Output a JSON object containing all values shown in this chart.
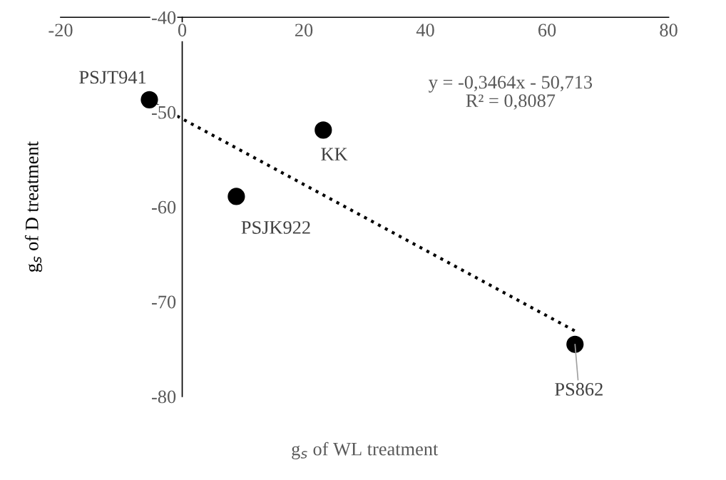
{
  "chart_data": {
    "type": "scatter",
    "xlabel": "g$_{s}$ of WL treatment",
    "ylabel": "g$_{s}$ of D treatment",
    "xlim": [
      -20,
      80
    ],
    "xticks": [
      -20,
      0,
      20,
      40,
      60,
      80
    ],
    "ylim": [
      -80,
      -40
    ],
    "yticks": [
      -80,
      -70,
      -60,
      -50,
      -40
    ],
    "grid": false,
    "legend": false,
    "marker": "circle",
    "series": [
      {
        "color": "#000000",
        "x": [
          -5.4,
          23.2,
          8.9,
          64.6
        ],
        "values": [
          -48.7,
          -51.9,
          -58.9,
          -74.5
        ]
      },
      {
        "type": "line",
        "color": "#000000",
        "line_style": "dotted",
        "marker": "none",
        "x": [
          -5.4,
          64.6
        ],
        "values": [
          -48.84,
          -73.09
        ]
      }
    ],
    "annotations": [
      {
        "text": "PSJT941",
        "x": -5.4,
        "y": -48.7
      },
      {
        "text": "KK",
        "x": 23.2,
        "y": -51.9
      },
      {
        "text": "PSJK922",
        "x": 8.9,
        "y": -58.9
      },
      {
        "text": "PS862",
        "x": 64.6,
        "y": -74.5
      },
      "y = -0,3464x - 50,713\nR² = 0,8087"
    ]
  }
}
